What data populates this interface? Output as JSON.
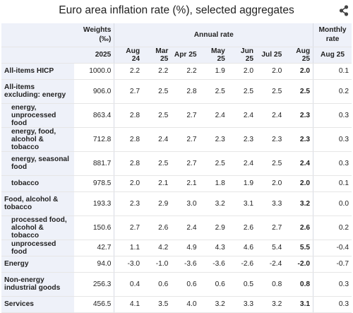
{
  "title": "Euro area inflation rate (%), selected aggregates",
  "header": {
    "weights_label": "Weights",
    "weights_unit": "(‰)",
    "annual_rate_label": "Annual rate",
    "monthly_rate_label": "Monthly rate",
    "weights_year": "2025",
    "columns": [
      "Aug 24",
      "Mar 25",
      "Apr 25",
      "May 25",
      "Jun 25",
      "Jul 25",
      "Aug 25"
    ],
    "monthly_column": "Aug 25"
  },
  "rows": [
    {
      "label": "All-items HICP",
      "weight": "1000.0",
      "values": [
        "2.2",
        "2.2",
        "2.2",
        "1.9",
        "2.0",
        "2.0",
        "2.0"
      ],
      "monthly": "0.1"
    },
    {
      "label": "All-items excluding: energy",
      "weight": "906.0",
      "values": [
        "2.7",
        "2.5",
        "2.8",
        "2.5",
        "2.5",
        "2.5",
        "2.5"
      ],
      "monthly": "0.2"
    },
    {
      "label": "energy, unprocessed food",
      "weight": "863.4",
      "values": [
        "2.8",
        "2.5",
        "2.7",
        "2.4",
        "2.4",
        "2.4",
        "2.3"
      ],
      "monthly": "0.3"
    },
    {
      "label": "energy, food, alcohol & tobacco",
      "weight": "712.8",
      "values": [
        "2.8",
        "2.4",
        "2.7",
        "2.3",
        "2.3",
        "2.3",
        "2.3"
      ],
      "monthly": "0.3"
    },
    {
      "label": "energy, seasonal food",
      "weight": "881.7",
      "values": [
        "2.8",
        "2.5",
        "2.7",
        "2.5",
        "2.4",
        "2.5",
        "2.4"
      ],
      "monthly": "0.3"
    },
    {
      "label": "tobacco",
      "weight": "978.5",
      "values": [
        "2.0",
        "2.1",
        "2.1",
        "1.8",
        "1.9",
        "2.0",
        "2.0"
      ],
      "monthly": "0.1"
    },
    {
      "label": "Food, alcohol & tobacco",
      "weight": "193.3",
      "values": [
        "2.3",
        "2.9",
        "3.0",
        "3.2",
        "3.1",
        "3.3",
        "3.2"
      ],
      "monthly": "0.0"
    },
    {
      "label": "processed food, alcohol & tobacco",
      "weight": "150.6",
      "values": [
        "2.7",
        "2.6",
        "2.4",
        "2.9",
        "2.6",
        "2.7",
        "2.6"
      ],
      "monthly": "0.2"
    },
    {
      "label": "unprocessed food",
      "weight": "42.7",
      "values": [
        "1.1",
        "4.2",
        "4.9",
        "4.3",
        "4.6",
        "5.4",
        "5.5"
      ],
      "monthly": "-0.4"
    },
    {
      "label": "Energy",
      "weight": "94.0",
      "values": [
        "-3.0",
        "-1.0",
        "-3.6",
        "-3.6",
        "-2.6",
        "-2.4",
        "-2.0"
      ],
      "monthly": "-0.7"
    },
    {
      "label": "Non-energy industrial goods",
      "weight": "256.3",
      "values": [
        "0.4",
        "0.6",
        "0.6",
        "0.6",
        "0.5",
        "0.8",
        "0.8"
      ],
      "monthly": "0.3"
    },
    {
      "label": "Services",
      "weight": "456.5",
      "values": [
        "4.1",
        "3.5",
        "4.0",
        "3.2",
        "3.3",
        "3.2",
        "3.1"
      ],
      "monthly": "0.3"
    }
  ]
}
